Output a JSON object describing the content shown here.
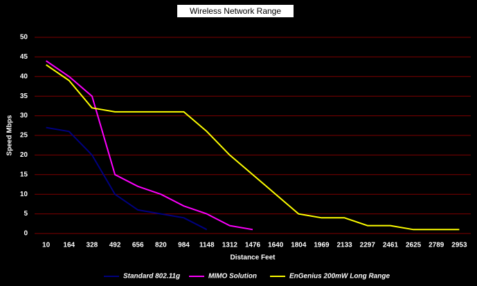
{
  "chart_data": {
    "type": "line",
    "title": "Wireless Network Range",
    "x_label": "Distance Feet",
    "y_label": "Speed Mbps",
    "categories": [
      "10",
      "164",
      "328",
      "492",
      "656",
      "820",
      "984",
      "1148",
      "1312",
      "1476",
      "1640",
      "1804",
      "1969",
      "2133",
      "2297",
      "2461",
      "2625",
      "2789",
      "2953"
    ],
    "series": [
      {
        "name": "Standard 802.11g",
        "color": "#000080",
        "values": [
          27,
          26,
          20,
          10,
          6,
          5,
          4,
          1,
          null,
          null,
          null,
          null,
          null,
          null,
          null,
          null,
          null,
          null,
          null
        ]
      },
      {
        "name": "MIMO Solution",
        "color": "#ff00ff",
        "values": [
          44,
          40,
          35,
          15,
          12,
          10,
          7,
          5,
          2,
          1,
          null,
          null,
          null,
          null,
          null,
          null,
          null,
          null,
          null
        ]
      },
      {
        "name": "EnGenius 200mW Long Range",
        "color": "#ffff00",
        "values": [
          43,
          39,
          32,
          31,
          31,
          31,
          31,
          26,
          20,
          15,
          10,
          5,
          4,
          4,
          2,
          2,
          1,
          1,
          1
        ]
      }
    ],
    "ylim": [
      0,
      50
    ],
    "yticks": [
      0,
      5,
      10,
      15,
      20,
      25,
      30,
      35,
      40,
      45,
      50
    ],
    "grid": true,
    "grid_color": "#800000",
    "legend": "bottom"
  }
}
